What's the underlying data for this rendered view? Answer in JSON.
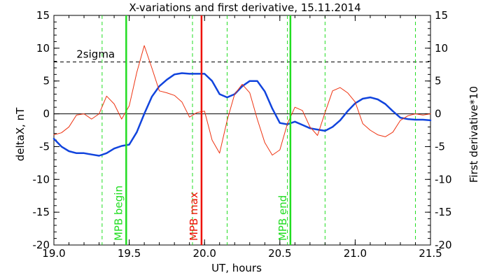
{
  "chart_data": {
    "type": "line",
    "title": "X-variations and first derivative, 15.11.2014",
    "xlabel": "UT, hours",
    "ylabel_left": "deltaX, nT",
    "ylabel_right": "First derivative*10",
    "xlim": [
      19.0,
      21.5
    ],
    "ylim": [
      -20,
      15
    ],
    "x_ticks": [
      19.0,
      19.5,
      20.0,
      20.5,
      21.0,
      21.5
    ],
    "x_tick_labels": [
      "19.0",
      "19.5",
      "20.0",
      "20.5",
      "21.0",
      "21.5"
    ],
    "y_ticks": [
      -20,
      -15,
      -10,
      -5,
      0,
      5,
      10,
      15
    ],
    "y_tick_labels": [
      "-20",
      "-15",
      "-10",
      "-5",
      "0",
      "5",
      "10",
      "15"
    ],
    "zero_line": 0,
    "threshold": {
      "label": "2sigma",
      "value": 7.9
    },
    "dashed_verticals": [
      19.32,
      19.92,
      20.15,
      20.55,
      20.8,
      21.4
    ],
    "markers": [
      {
        "label": "MPB begin",
        "x": 19.48,
        "color": "#22dd22"
      },
      {
        "label": "MPB max",
        "x": 19.98,
        "color": "#ee1100"
      },
      {
        "label": "MPB end",
        "x": 20.57,
        "color": "#22dd22"
      }
    ],
    "series": [
      {
        "role": "deltaX",
        "color": "#1144dd",
        "x": [
          19.0,
          19.05,
          19.1,
          19.15,
          19.2,
          19.25,
          19.3,
          19.35,
          19.4,
          19.45,
          19.5,
          19.55,
          19.6,
          19.65,
          19.7,
          19.75,
          19.8,
          19.85,
          19.9,
          19.95,
          20.0,
          20.05,
          20.1,
          20.15,
          20.2,
          20.25,
          20.3,
          20.35,
          20.4,
          20.45,
          20.5,
          20.55,
          20.6,
          20.65,
          20.7,
          20.75,
          20.8,
          20.85,
          20.9,
          20.95,
          21.0,
          21.05,
          21.1,
          21.15,
          21.2,
          21.25,
          21.3,
          21.35,
          21.4,
          21.45,
          21.5
        ],
        "values": [
          -3.8,
          -5.0,
          -5.7,
          -6.0,
          -6.0,
          -6.2,
          -6.4,
          -6.0,
          -5.3,
          -4.9,
          -4.7,
          -2.8,
          0.0,
          2.6,
          4.2,
          5.2,
          6.0,
          6.2,
          6.1,
          6.1,
          6.1,
          5.0,
          3.0,
          2.5,
          3.0,
          4.2,
          5.0,
          5.0,
          3.4,
          0.8,
          -1.4,
          -1.6,
          -1.2,
          -1.7,
          -2.2,
          -2.4,
          -2.6,
          -2.0,
          -1.0,
          0.4,
          1.6,
          2.3,
          2.5,
          2.2,
          1.5,
          0.4,
          -0.6,
          -0.8,
          -0.9,
          -0.9,
          -1.0
        ]
      },
      {
        "role": "derivative",
        "color": "#ee3311",
        "x": [
          19.0,
          19.05,
          19.1,
          19.15,
          19.2,
          19.25,
          19.3,
          19.35,
          19.4,
          19.45,
          19.5,
          19.55,
          19.6,
          19.65,
          19.7,
          19.75,
          19.8,
          19.85,
          19.9,
          19.95,
          20.0,
          20.05,
          20.1,
          20.15,
          20.2,
          20.25,
          20.3,
          20.35,
          20.4,
          20.45,
          20.5,
          20.55,
          20.6,
          20.65,
          20.7,
          20.75,
          20.8,
          20.85,
          20.9,
          20.95,
          21.0,
          21.05,
          21.1,
          21.15,
          21.2,
          21.25,
          21.3,
          21.35,
          21.4,
          21.45,
          21.5
        ],
        "values": [
          -3.2,
          -2.9,
          -2.0,
          -0.2,
          0.0,
          -0.8,
          0.0,
          2.7,
          1.5,
          -0.8,
          1.2,
          6.3,
          10.4,
          7.0,
          3.5,
          3.2,
          2.8,
          1.8,
          -0.5,
          0.2,
          0.4,
          -4.0,
          -6.0,
          -1.0,
          3.0,
          4.5,
          3.2,
          -0.8,
          -4.4,
          -6.3,
          -5.5,
          -1.5,
          1.0,
          0.5,
          -2.0,
          -3.3,
          0.2,
          3.5,
          4.0,
          3.2,
          1.8,
          -1.5,
          -2.5,
          -3.2,
          -3.5,
          -2.8,
          -1.0,
          -0.3,
          0.0,
          -0.2,
          0.0
        ]
      }
    ]
  }
}
